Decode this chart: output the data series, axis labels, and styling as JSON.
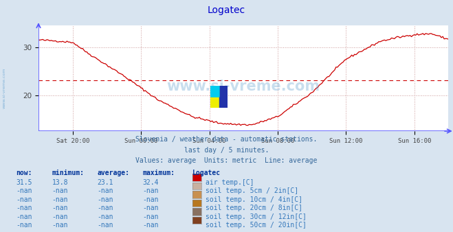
{
  "title": "Logatec",
  "title_color": "#0000cc",
  "bg_color": "#d8e4f0",
  "plot_bg_color": "#ffffff",
  "grid_color": "#cc9999",
  "axis_color": "#5555ff",
  "line_color": "#cc0000",
  "avg_line_color": "#cc0000",
  "avg_value": 23.1,
  "y_min": 12.5,
  "y_max": 34.5,
  "y_ticks": [
    20,
    30
  ],
  "x_labels": [
    "Sat 20:00",
    "Sun 00:00",
    "Sun 04:00",
    "Sun 08:00",
    "Sun 12:00",
    "Sun 16:00"
  ],
  "subtitle1": "Slovenia / weather data - automatic stations.",
  "subtitle2": "last day / 5 minutes.",
  "subtitle3": "Values: average  Units: metric  Line: average",
  "subtitle_color": "#336699",
  "watermark": "www.si-vreme.com",
  "watermark_color": "#5599cc",
  "table_header_color": "#003399",
  "table_data_color": "#3377bb",
  "now_val": "31.5",
  "min_val": "13.8",
  "avg_val": "23.1",
  "max_val": "32.4",
  "legend_items": [
    {
      "label": "air temp.[C]",
      "color": "#cc0000"
    },
    {
      "label": "soil temp. 5cm / 2in[C]",
      "color": "#c8b0a0"
    },
    {
      "label": "soil temp. 10cm / 4in[C]",
      "color": "#c89050"
    },
    {
      "label": "soil temp. 20cm / 8in[C]",
      "color": "#b87820"
    },
    {
      "label": "soil temp. 30cm / 12in[C]",
      "color": "#887060"
    },
    {
      "label": "soil temp. 50cm / 20in[C]",
      "color": "#804020"
    }
  ]
}
